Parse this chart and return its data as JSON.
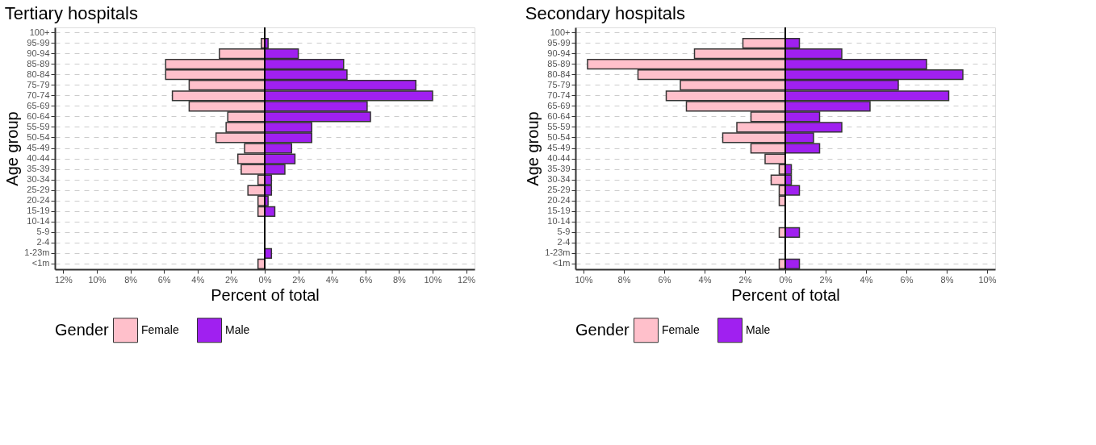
{
  "chart_data": [
    {
      "type": "bar",
      "orientation": "horizontal",
      "stacked": true,
      "title": "Tertiary hospitals",
      "xlabel": "Percent of total",
      "ylabel": "Age group",
      "legend_title": "Gender",
      "legend": "bottom",
      "grid": "y",
      "categories": [
        "100+",
        "95-99",
        "90-94",
        "85-89",
        "80-84",
        "75-79",
        "70-74",
        "65-69",
        "60-64",
        "55-59",
        "50-54",
        "45-49",
        "40-44",
        "35-39",
        "30-34",
        "25-29",
        "20-24",
        "15-19",
        "10-14",
        "5-9",
        "2-4",
        "1-23m",
        "<1m"
      ],
      "series": [
        {
          "name": "Female",
          "color": "#ffc0cb",
          "values": [
            0,
            -0.2,
            -2.7,
            -5.9,
            -5.9,
            -4.5,
            -5.5,
            -4.5,
            -2.2,
            -2.3,
            -2.9,
            -1.2,
            -1.6,
            -1.4,
            -0.4,
            -1.0,
            -0.4,
            -0.4,
            0,
            0,
            0,
            0,
            -0.4
          ]
        },
        {
          "name": "Male",
          "color": "#a020f0",
          "values": [
            0,
            0.2,
            2.0,
            4.7,
            4.9,
            9.0,
            10.0,
            6.1,
            6.3,
            2.8,
            2.8,
            1.6,
            1.8,
            1.2,
            0.4,
            0.4,
            0.2,
            0.6,
            0,
            0,
            0,
            0.4,
            0
          ]
        }
      ],
      "xlim": [
        -12.5,
        12.5
      ],
      "xticks": [
        {
          "value": -12,
          "label": "12%"
        },
        {
          "value": -10,
          "label": "10%"
        },
        {
          "value": -8,
          "label": "8%"
        },
        {
          "value": -6,
          "label": "6%"
        },
        {
          "value": -4,
          "label": "4%"
        },
        {
          "value": -2,
          "label": "2%"
        },
        {
          "value": 0,
          "label": "0%"
        },
        {
          "value": 2,
          "label": "2%"
        },
        {
          "value": 4,
          "label": "4%"
        },
        {
          "value": 6,
          "label": "6%"
        },
        {
          "value": 8,
          "label": "8%"
        },
        {
          "value": 10,
          "label": "10%"
        },
        {
          "value": 12,
          "label": "12%"
        }
      ],
      "ref_lines": [
        {
          "axis": "x",
          "value": 0,
          "color": "#000000"
        }
      ]
    },
    {
      "type": "bar",
      "orientation": "horizontal",
      "stacked": true,
      "title": "Secondary hospitals",
      "xlabel": "Percent of total",
      "ylabel": "Age group",
      "legend_title": "Gender",
      "legend": "bottom",
      "grid": "y",
      "categories": [
        "100+",
        "95-99",
        "90-94",
        "85-89",
        "80-84",
        "75-79",
        "70-74",
        "65-69",
        "60-64",
        "55-59",
        "50-54",
        "45-49",
        "40-44",
        "35-39",
        "30-34",
        "25-29",
        "20-24",
        "15-19",
        "10-14",
        "5-9",
        "2-4",
        "1-23m",
        "<1m"
      ],
      "series": [
        {
          "name": "Female",
          "color": "#ffc0cb",
          "values": [
            0,
            -2.1,
            -4.5,
            -9.8,
            -7.3,
            -5.2,
            -5.9,
            -4.9,
            -1.7,
            -2.4,
            -3.1,
            -1.7,
            -1.0,
            -0.3,
            -0.7,
            -0.3,
            -0.3,
            0,
            0,
            -0.3,
            0,
            0,
            -0.3
          ]
        },
        {
          "name": "Male",
          "color": "#a020f0",
          "values": [
            0,
            0.7,
            2.8,
            7.0,
            8.8,
            5.6,
            8.1,
            4.2,
            1.7,
            2.8,
            1.4,
            1.7,
            0,
            0.3,
            0.3,
            0.7,
            0,
            0,
            0,
            0.7,
            0,
            0,
            0.7
          ]
        }
      ],
      "xlim": [
        -10.4,
        10.4
      ],
      "xticks": [
        {
          "value": -10,
          "label": "10%"
        },
        {
          "value": -8,
          "label": "8%"
        },
        {
          "value": -6,
          "label": "6%"
        },
        {
          "value": -4,
          "label": "4%"
        },
        {
          "value": -2,
          "label": "2%"
        },
        {
          "value": 0,
          "label": "0%"
        },
        {
          "value": 2,
          "label": "2%"
        },
        {
          "value": 4,
          "label": "4%"
        },
        {
          "value": 6,
          "label": "6%"
        },
        {
          "value": 8,
          "label": "8%"
        },
        {
          "value": 10,
          "label": "10%"
        }
      ],
      "ref_lines": [
        {
          "axis": "x",
          "value": 0,
          "color": "#000000"
        }
      ]
    }
  ]
}
